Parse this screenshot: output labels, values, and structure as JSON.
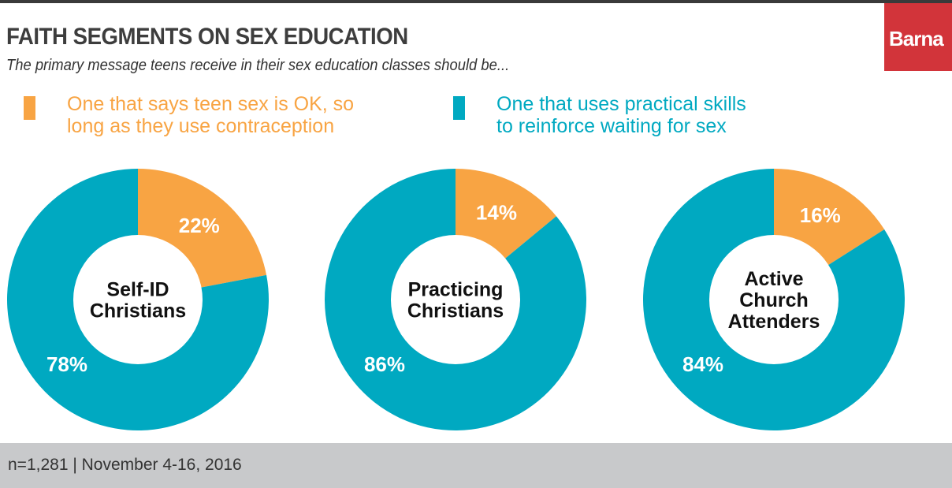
{
  "header": {
    "title": "FAITH SEGMENTS ON SEX EDUCATION",
    "subtitle": "The primary message teens receive in their sex education classes should be...",
    "logo": "Barna"
  },
  "footer": {
    "note": "n=1,281  |  November 4-16, 2016"
  },
  "colors": {
    "orange": "#f8a443",
    "teal": "#00a9c1",
    "footer_bg": "#c8c9cb",
    "logo_bg": "#d2343a"
  },
  "chart_data": {
    "type": "pie",
    "title": "FAITH SEGMENTS ON SEX EDUCATION",
    "legend": [
      {
        "name": "One that says teen sex is OK, so long as they use contraception",
        "line1": "One that says teen sex is OK, so",
        "line2": "long as they use contraception",
        "color": "#f8a443"
      },
      {
        "name": "One that uses practical skills to reinforce waiting for sex",
        "line1": "One that uses practical skills",
        "line2": "to reinforce waiting for sex",
        "color": "#00a9c1"
      }
    ],
    "legend_placement": "top",
    "charts": [
      {
        "label": [
          "Self-ID",
          "Christians"
        ],
        "values": [
          22,
          78
        ],
        "labels": [
          "22%",
          "78%"
        ]
      },
      {
        "label": [
          "Practicing",
          "Christians"
        ],
        "values": [
          14,
          86
        ],
        "labels": [
          "14%",
          "86%"
        ]
      },
      {
        "label": [
          "Active",
          "Church",
          "Attenders"
        ],
        "values": [
          16,
          84
        ],
        "labels": [
          "16%",
          "84%"
        ]
      }
    ]
  }
}
